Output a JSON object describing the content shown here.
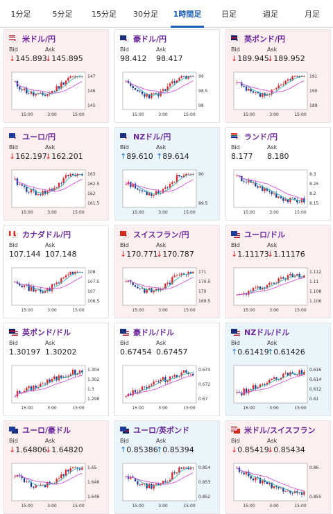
{
  "tabs": [
    {
      "label": "1分足",
      "active": false
    },
    {
      "label": "5分足",
      "active": false
    },
    {
      "label": "15分足",
      "active": false
    },
    {
      "label": "30分足",
      "active": false
    },
    {
      "label": "1時間足",
      "active": true
    },
    {
      "label": "日足",
      "active": false
    },
    {
      "label": "週足",
      "active": false
    },
    {
      "label": "月足",
      "active": false
    }
  ],
  "labels": {
    "bid": "Bid",
    "ask": "Ask"
  },
  "colors": {
    "down_arrow": "#d22222",
    "up_arrow": "#1a72c9",
    "bull": "#d8262a",
    "bear": "#1c3f8f",
    "ma_short": "#35b0b5",
    "ma_long": "#d24fd8"
  },
  "cards": [
    {
      "pair": "米ドル/円",
      "flag": [
        "us",
        "jp"
      ],
      "dir": "down",
      "bid": "145.893",
      "ask": "145.895",
      "yticks": [
        "147",
        "146",
        "145"
      ],
      "xticks": [
        "15:00",
        "3:00",
        "15:00"
      ],
      "seed": 11,
      "shape": "dipmid"
    },
    {
      "pair": "豪ドル/円",
      "flag": [
        "au",
        "jp"
      ],
      "dir": "flat",
      "bid": "98.412",
      "ask": "98.417",
      "yticks": [
        "99",
        "98.5",
        "98"
      ],
      "xticks": [
        "15:00",
        "3:00",
        "15:00"
      ],
      "seed": 23,
      "shape": "dipmid"
    },
    {
      "pair": "英ポンド/円",
      "flag": [
        "gb",
        "jp"
      ],
      "dir": "down",
      "bid": "189.945",
      "ask": "189.952",
      "yticks": [
        "191",
        "190",
        "189"
      ],
      "xticks": [
        "15:00",
        "3:00",
        "15:00"
      ],
      "seed": 37,
      "shape": "dipmid"
    },
    {
      "pair": "ユーロ/円",
      "flag": [
        "eu",
        "jp"
      ],
      "dir": "down",
      "bid": "162.197",
      "ask": "162.201",
      "yticks": [
        "163",
        "162.5",
        "162",
        "161.5"
      ],
      "xticks": [
        "15:00",
        "3:00",
        "15:00"
      ],
      "seed": 41,
      "shape": "dipmid"
    },
    {
      "pair": "NZドル/円",
      "flag": [
        "nz",
        "jp"
      ],
      "dir": "up",
      "bid": "89.610",
      "ask": "89.614",
      "yticks": [
        "90",
        "89.5"
      ],
      "xticks": [
        "15:00",
        "3:00",
        "15:00"
      ],
      "seed": 53,
      "shape": "dipmid"
    },
    {
      "pair": "ランド/円",
      "flag": [
        "za",
        "jp"
      ],
      "dir": "flat",
      "bid": "8.177",
      "ask": "8.180",
      "yticks": [
        "8.3",
        "8.25",
        "8.2",
        "8.15"
      ],
      "xticks": [
        "15:00",
        "3:00",
        "15:00"
      ],
      "seed": 67,
      "shape": "fall"
    },
    {
      "pair": "カナダドル/円",
      "flag": [
        "ca",
        "jp"
      ],
      "dir": "flat",
      "bid": "107.144",
      "ask": "107.148",
      "yticks": [
        "108",
        "107.5",
        "107",
        "106.5"
      ],
      "xticks": [
        "15:00",
        "3:00",
        "15:00"
      ],
      "seed": 71,
      "shape": "dipmid"
    },
    {
      "pair": "スイスフラン/円",
      "flag": [
        "ch",
        "jp"
      ],
      "dir": "down",
      "bid": "170.771",
      "ask": "170.787",
      "yticks": [
        "171",
        "170.5",
        "170",
        "169.5"
      ],
      "xticks": [
        "15:00",
        "3:00",
        "15:00"
      ],
      "seed": 83,
      "shape": "dipmid"
    },
    {
      "pair": "ユーロ/ドル",
      "flag": [
        "eu",
        "us"
      ],
      "dir": "down",
      "bid": "1.11173",
      "ask": "1.11176",
      "yticks": [
        "1.112",
        "1.11",
        "1.108",
        "1.106"
      ],
      "xticks": [
        "15:00",
        "3:00",
        "15:00"
      ],
      "seed": 97,
      "shape": "rise"
    },
    {
      "pair": "英ポンド/ドル",
      "flag": [
        "gb",
        "us"
      ],
      "dir": "flat",
      "bid": "1.30197",
      "ask": "1.30202",
      "yticks": [
        "1.304",
        "1.302",
        "1.3",
        "1.298"
      ],
      "xticks": [
        "15:00",
        "3:00",
        "15:00"
      ],
      "seed": 101,
      "shape": "rise"
    },
    {
      "pair": "豪ドル/ドル",
      "flag": [
        "au",
        "us"
      ],
      "dir": "flat",
      "bid": "0.67454",
      "ask": "0.67457",
      "yticks": [
        "0.674",
        "0.672",
        "0.67"
      ],
      "xticks": [
        "15:00",
        "3:00",
        "15:00"
      ],
      "seed": 113,
      "shape": "rise"
    },
    {
      "pair": "NZドル/ドル",
      "flag": [
        "nz",
        "us"
      ],
      "dir": "up",
      "bid": "0.61419",
      "ask": "0.61426",
      "yticks": [
        "0.616",
        "0.614",
        "0.612",
        "0.61"
      ],
      "xticks": [
        "15:00",
        "3:00",
        "15:00"
      ],
      "seed": 127,
      "shape": "rise"
    },
    {
      "pair": "ユーロ/豪ドル",
      "flag": [
        "eu",
        "au"
      ],
      "dir": "down",
      "bid": "1.64806",
      "ask": "1.64820",
      "yticks": [
        "1.65",
        "1.648",
        "1.646"
      ],
      "xticks": [
        "15:00",
        "3:00",
        "15:00"
      ],
      "seed": 131,
      "shape": "dipmid"
    },
    {
      "pair": "ユーロ/英ポンド",
      "flag": [
        "eu",
        "gb"
      ],
      "dir": "up",
      "bid": "0.85386",
      "ask": "0.85394",
      "yticks": [
        "0.854",
        "0.853",
        "0.852"
      ],
      "xticks": [
        "15:00",
        "3:00",
        "15:00"
      ],
      "seed": 149,
      "shape": "dipmid"
    },
    {
      "pair": "米ドル/スイスフラン",
      "flag": [
        "us",
        "ch"
      ],
      "dir": "down",
      "bid": "0.85419",
      "ask": "0.85434",
      "yticks": [
        "0.86",
        "0.855"
      ],
      "xticks": [
        "15:00",
        "3:00",
        "15:00"
      ],
      "seed": 157,
      "shape": "fall"
    }
  ]
}
